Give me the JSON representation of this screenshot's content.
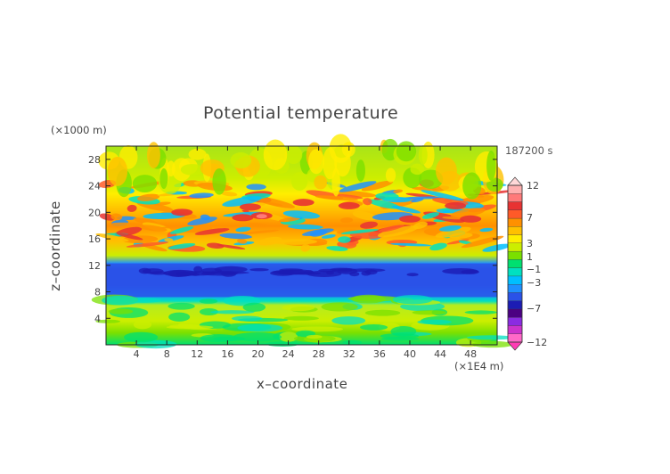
{
  "chart_data": {
    "type": "heatmap",
    "title": "Potential temperature",
    "xlabel": "x–coordinate",
    "ylabel": "z–coordinate",
    "x_unit": "(×1E4 m)",
    "z_unit": "(×1000 m)",
    "time_label": "187200 s",
    "xlim": [
      0,
      51.5
    ],
    "ylim": [
      0,
      30
    ],
    "x_ticks": [
      "4",
      "8",
      "12",
      "16",
      "20",
      "24",
      "28",
      "32",
      "36",
      "40",
      "44",
      "48"
    ],
    "y_ticks": [
      "4",
      "8",
      "12",
      "16",
      "20",
      "24",
      "28"
    ],
    "colorbar": {
      "labels": [
        "12",
        "7",
        "3",
        "1",
        "−1",
        "−3",
        "−7",
        "−12"
      ],
      "colors": [
        "#ff69c8",
        "#cc33cc",
        "#8a2be2",
        "#4b0082",
        "#1c1cb4",
        "#2a52e8",
        "#1e90ff",
        "#00bfff",
        "#00e0c0",
        "#00e070",
        "#7ae000",
        "#ccee00",
        "#ffee00",
        "#ffc000",
        "#ff9000",
        "#ff5a28",
        "#e83232",
        "#ff7a7a",
        "#ffb0b0"
      ]
    },
    "bands": [
      {
        "z": [
          0,
          3
        ],
        "value": -1
      },
      {
        "z": [
          3,
          7
        ],
        "value": 0
      },
      {
        "z": [
          7,
          12
        ],
        "value": -4
      },
      {
        "z": [
          12,
          16
        ],
        "value": 1
      },
      {
        "z": [
          16,
          24
        ],
        "value": 4
      },
      {
        "z": [
          24,
          30
        ],
        "value": 1
      }
    ],
    "grid": false
  }
}
